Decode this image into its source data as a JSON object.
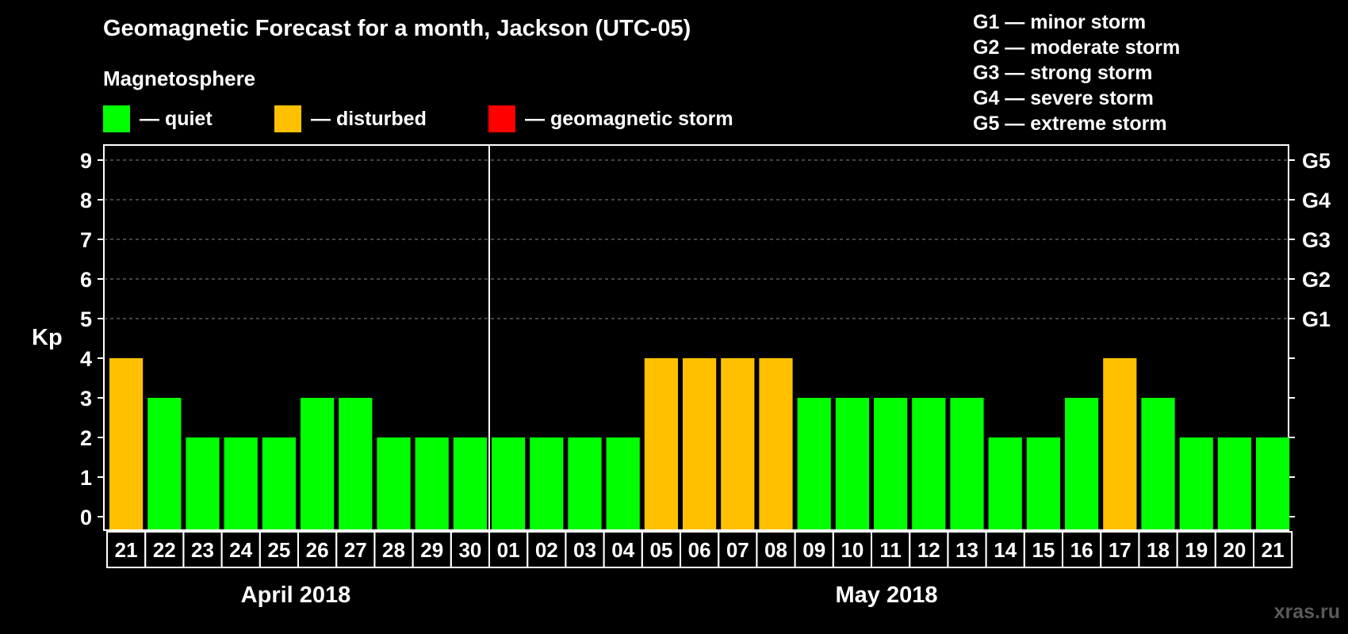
{
  "title": "Geomagnetic Forecast for a month, Jackson (UTC-05)",
  "subtitle": "Magnetosphere",
  "legend": [
    {
      "label": "— quiet",
      "color": "#00ff00"
    },
    {
      "label": "— disturbed",
      "color": "#ffc000"
    },
    {
      "label": "— geomagnetic storm",
      "color": "#ff0000"
    }
  ],
  "g_levels": [
    "G1 — minor storm",
    "G2 — moderate storm",
    "G3 — strong storm",
    "G4 — severe storm",
    "G5 — extreme storm"
  ],
  "months": [
    "April 2018",
    "May 2018"
  ],
  "watermark": "xras.ru",
  "chart_data": {
    "type": "bar",
    "ylabel": "Kp",
    "ylim": [
      0,
      9
    ],
    "y_ticks": [
      0,
      1,
      2,
      3,
      4,
      5,
      6,
      7,
      8,
      9
    ],
    "right_axis_labels": [
      {
        "kp": 5,
        "label": "G1"
      },
      {
        "kp": 6,
        "label": "G2"
      },
      {
        "kp": 7,
        "label": "G3"
      },
      {
        "kp": 8,
        "label": "G4"
      },
      {
        "kp": 9,
        "label": "G5"
      }
    ],
    "grid": "dashed horizontal lines at Kp 5-9",
    "categories": [
      "21",
      "22",
      "23",
      "24",
      "25",
      "26",
      "27",
      "28",
      "29",
      "30",
      "01",
      "02",
      "03",
      "04",
      "05",
      "06",
      "07",
      "08",
      "09",
      "10",
      "11",
      "12",
      "13",
      "14",
      "15",
      "16",
      "17",
      "18",
      "19",
      "20",
      "21"
    ],
    "values": [
      4,
      3,
      2,
      2,
      2,
      3,
      3,
      2,
      2,
      2,
      2,
      2,
      2,
      2,
      4,
      4,
      4,
      4,
      3,
      3,
      3,
      3,
      3,
      2,
      2,
      3,
      4,
      3,
      2,
      2,
      2
    ],
    "status": [
      "disturbed",
      "quiet",
      "quiet",
      "quiet",
      "quiet",
      "quiet",
      "quiet",
      "quiet",
      "quiet",
      "quiet",
      "quiet",
      "quiet",
      "quiet",
      "quiet",
      "disturbed",
      "disturbed",
      "disturbed",
      "disturbed",
      "quiet",
      "quiet",
      "quiet",
      "quiet",
      "quiet",
      "quiet",
      "quiet",
      "quiet",
      "disturbed",
      "quiet",
      "quiet",
      "quiet",
      "quiet"
    ],
    "colors": {
      "quiet": "#00ff00",
      "disturbed": "#ffc000",
      "storm": "#ff0000"
    }
  }
}
